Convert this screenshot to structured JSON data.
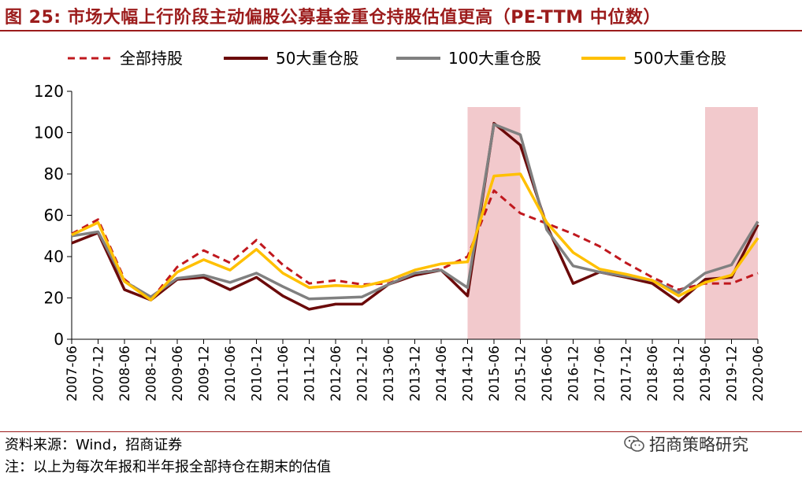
{
  "header": {
    "title": "图 25:  市场大幅上行阶段主动偏股公募基金重仓持股估值更高（PE-TTM 中位数）"
  },
  "footer": {
    "source": "资料来源：Wind，招商证券",
    "note": "注：以上为每次年报和半年报全部持仓在期末的估值",
    "brand": "招商策略研究"
  },
  "colors": {
    "title": "#9c1c1c",
    "shade": "#f2c9cc",
    "all_holdings": "#c0181e",
    "top50": "#6b0a0a",
    "top100": "#808080",
    "top500": "#ffc000"
  },
  "chart_data": {
    "type": "line",
    "title": "",
    "xlabel": "",
    "ylabel": "",
    "ylim": [
      0,
      120
    ],
    "yticks": [
      0,
      20,
      40,
      60,
      80,
      100,
      120
    ],
    "grid": false,
    "legend_position": "top",
    "x": [
      "2007-06",
      "2007-12",
      "2008-06",
      "2008-12",
      "2009-06",
      "2009-12",
      "2010-06",
      "2010-12",
      "2011-06",
      "2011-12",
      "2012-06",
      "2012-12",
      "2013-06",
      "2013-12",
      "2014-06",
      "2014-12",
      "2015-06",
      "2015-12",
      "2016-06",
      "2016-12",
      "2017-06",
      "2017-12",
      "2018-06",
      "2018-12",
      "2019-06",
      "2019-12",
      "2020-06"
    ],
    "shaded_ranges": [
      [
        "2014-12",
        "2015-12"
      ],
      [
        "2019-06",
        "2020-06"
      ]
    ],
    "series": [
      {
        "name": "全部持股",
        "style": "dashed",
        "color": "#c0181e",
        "values": [
          51,
          58,
          29,
          19,
          35,
          43,
          37,
          48,
          36,
          27,
          28.5,
          26.5,
          27,
          32,
          34,
          40,
          72,
          61,
          56,
          51,
          45,
          37,
          30,
          24,
          27,
          27,
          32
        ]
      },
      {
        "name": "50大重仓股",
        "style": "solid",
        "color": "#6b0a0a",
        "values": [
          46.5,
          51.5,
          24,
          19,
          29,
          30,
          24,
          30,
          21,
          14.5,
          17,
          17,
          26.5,
          31,
          33.5,
          21,
          104.5,
          94,
          55,
          27,
          32.5,
          30,
          27,
          18,
          29,
          30,
          55.5
        ]
      },
      {
        "name": "100大重仓股",
        "style": "solid",
        "color": "#808080",
        "values": [
          50,
          52,
          28,
          20.5,
          29.5,
          31,
          27.5,
          32,
          25.5,
          19.5,
          20,
          20.5,
          26.5,
          32,
          33.5,
          25,
          104,
          99,
          53,
          35.5,
          32.5,
          30.5,
          28.5,
          22.5,
          32,
          36,
          57
        ]
      },
      {
        "name": "500大重仓股",
        "style": "solid",
        "color": "#ffc000",
        "values": [
          50.5,
          56.5,
          28,
          19,
          32.5,
          38.5,
          33.5,
          43.5,
          32,
          25,
          26,
          25.5,
          28.5,
          33.5,
          36.5,
          37.5,
          79,
          80,
          56.5,
          42,
          34,
          31.5,
          28.5,
          21,
          27.5,
          31,
          49
        ]
      }
    ]
  }
}
